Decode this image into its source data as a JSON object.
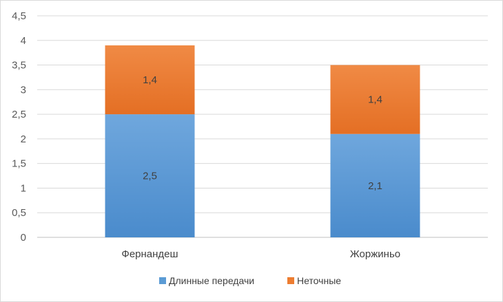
{
  "chart_data": {
    "type": "bar",
    "stacked": true,
    "categories": [
      "Фернандеш",
      "Жоржиньо"
    ],
    "series": [
      {
        "name": "Длинные передачи",
        "values": [
          2.5,
          2.1
        ],
        "labels": [
          "2,5",
          "2,1"
        ],
        "color": "#5b9bd5"
      },
      {
        "name": "Неточные",
        "values": [
          1.4,
          1.4
        ],
        "labels": [
          "1,4",
          "1,4"
        ],
        "color": "#ed7d31"
      }
    ],
    "ylim": [
      0,
      4.5
    ],
    "yticks": [
      0,
      0.5,
      1,
      1.5,
      2,
      2.5,
      3,
      3.5,
      4,
      4.5
    ],
    "ytick_labels": [
      "0",
      "0,5",
      "1",
      "1,5",
      "2",
      "2,5",
      "3",
      "3,5",
      "4",
      "4,5"
    ],
    "grid": true,
    "legend_position": "bottom",
    "title": "",
    "xlabel": "",
    "ylabel": ""
  }
}
